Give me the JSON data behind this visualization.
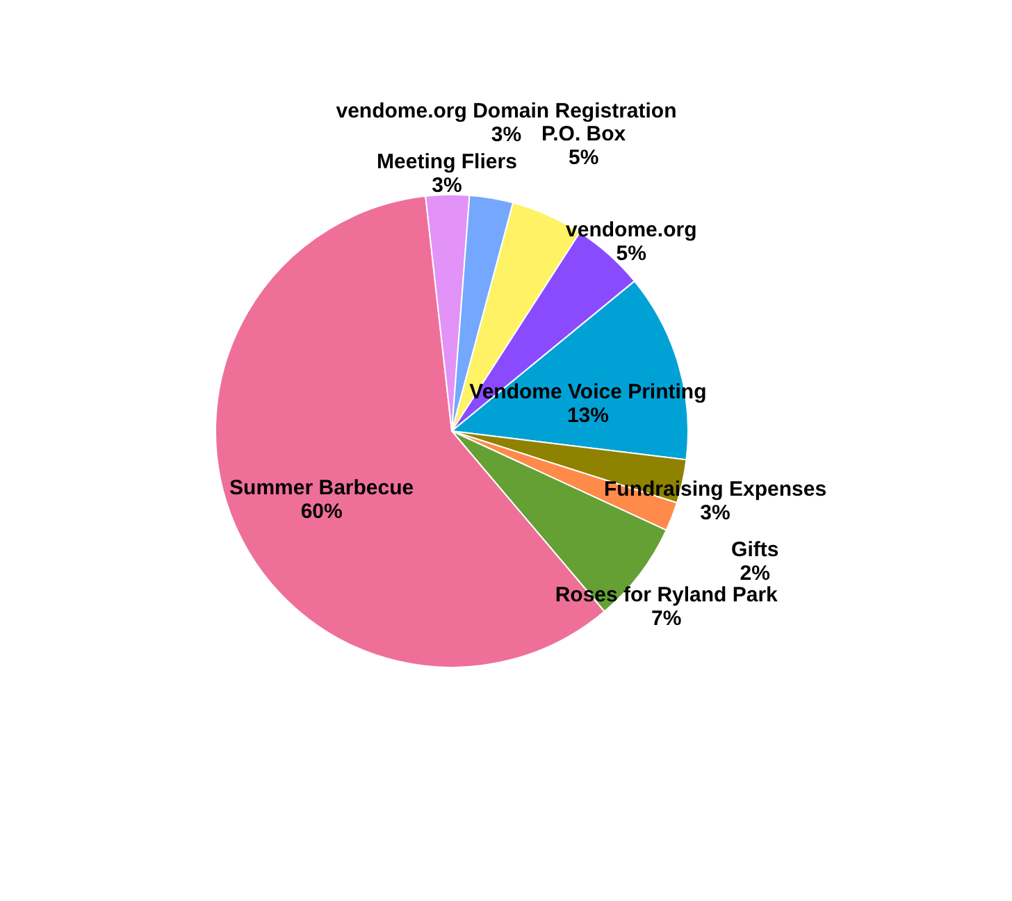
{
  "chart_data": {
    "type": "pie",
    "categories": [
      "P.O. Box",
      "vendome.org",
      "Vendome Voice Printing",
      "Fundraising Expenses",
      "Gifts",
      "Roses for Ryland Park",
      "Summer Barbecue",
      "Meeting Fliers",
      "vendome.org Domain Registration"
    ],
    "values": [
      5,
      5,
      13,
      3,
      2,
      7,
      60,
      3,
      3
    ],
    "value_labels": [
      "5%",
      "5%",
      "13%",
      "3%",
      "2%",
      "7%",
      "60%",
      "3%",
      "3%"
    ],
    "colors": [
      "#fff264",
      "#8a4bff",
      "#00a2d6",
      "#8f8200",
      "#ff8a4a",
      "#64a034",
      "#ee7099",
      "#e392f7",
      "#74a8ff"
    ],
    "legend": false
  }
}
